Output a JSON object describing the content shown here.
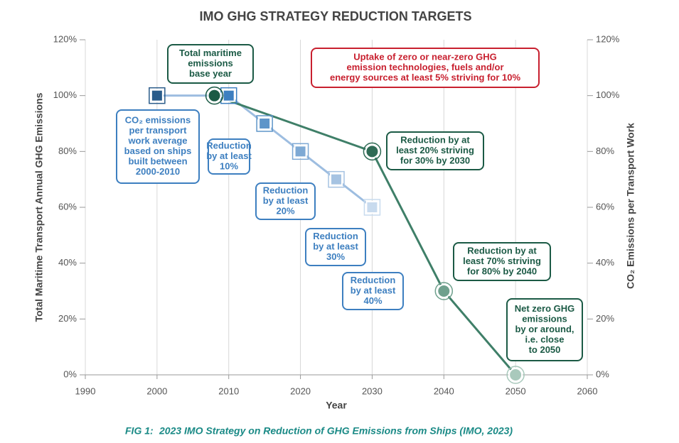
{
  "chart_data": {
    "type": "line",
    "title": "IMO GHG STRATEGY REDUCTION TARGETS",
    "xlabel": "Year",
    "ylabel": "Total Maritime Transport Annual GHG Emissions",
    "y2label": "CO₂ Emissions per Transport Work",
    "caption_label": "FIG 1:",
    "caption": "2023 IMO Strategy on Reduction of GHG Emissions from Ships (IMO, 2023)",
    "xlim": [
      1990,
      2060
    ],
    "xticks": [
      1990,
      2000,
      2010,
      2020,
      2030,
      2040,
      2050,
      2060
    ],
    "ylim": [
      0,
      120
    ],
    "yticks": [
      {
        "value": 0,
        "label": "0%"
      },
      {
        "value": 20,
        "label": "20%"
      },
      {
        "value": 40,
        "label": "40%"
      },
      {
        "value": 60,
        "label": "60%"
      },
      {
        "value": 80,
        "label": "80%"
      },
      {
        "value": 100,
        "label": "100%"
      },
      {
        "value": 120,
        "label": "120%"
      }
    ],
    "y2lim": [
      0,
      120
    ],
    "y2ticks": [
      {
        "value": 0,
        "label": "0%"
      },
      {
        "value": 20,
        "label": "20%"
      },
      {
        "value": 40,
        "label": "40%"
      },
      {
        "value": 60,
        "label": "60%"
      },
      {
        "value": 80,
        "label": "80%"
      },
      {
        "value": 100,
        "label": "100%"
      },
      {
        "value": 120,
        "label": "120%"
      }
    ],
    "grid": "x",
    "series": [
      {
        "name": null,
        "axis": "y2",
        "marker": "square",
        "color": "#9dbde0",
        "x": [
          2000,
          2010,
          2015,
          2020,
          2025,
          2030
        ],
        "values": [
          100,
          100,
          90,
          80,
          70,
          60
        ],
        "marker_colors": [
          "#2a5c8a",
          "#3d7fc0",
          "#5e95c9",
          "#7ea9d4",
          "#a6c3e2",
          "#c8dbee"
        ]
      },
      {
        "name": null,
        "axis": "y",
        "marker": "circle",
        "color": "#3f7f68",
        "x": [
          2008,
          2030,
          2040,
          2050
        ],
        "values": [
          100,
          80,
          30,
          0
        ],
        "marker_colors": [
          "#1b5a45",
          "#2f6b55",
          "#6fa08d",
          "#a9c9bc"
        ]
      }
    ],
    "annotations": [
      {
        "lines": [
          "Total maritime",
          "emissions",
          "base year"
        ],
        "color": "#1b5a45"
      },
      {
        "lines": [
          "CO₂ emissions",
          "per transport",
          "work average",
          "based on ships",
          "built between",
          "2000-2010"
        ],
        "color": "#3d7fc0"
      },
      {
        "lines": [
          "Reduction",
          "by at least",
          "10%"
        ],
        "color": "#3d7fc0"
      },
      {
        "lines": [
          "Reduction",
          "by at least",
          "20%"
        ],
        "color": "#3d7fc0"
      },
      {
        "lines": [
          "Reduction",
          "by at least",
          "30%"
        ],
        "color": "#3d7fc0"
      },
      {
        "lines": [
          "Reduction",
          "by at least",
          "40%"
        ],
        "color": "#3d7fc0"
      },
      {
        "lines": [
          "Uptake of zero or near-zero GHG",
          "emission technologies, fuels and/or",
          "energy sources at least 5% striving for 10%"
        ],
        "color": "#c8202f"
      },
      {
        "lines": [
          "Reduction by at",
          "least 20% striving",
          "for 30% by 2030"
        ],
        "color": "#1b5a45"
      },
      {
        "lines": [
          "Reduction by at",
          "least 70% striving",
          "for 80% by 2040"
        ],
        "color": "#1b5a45"
      },
      {
        "lines": [
          "Net zero GHG",
          "emissions",
          "by or around,",
          "i.e. close",
          "to 2050"
        ],
        "color": "#1b5a45"
      }
    ]
  }
}
